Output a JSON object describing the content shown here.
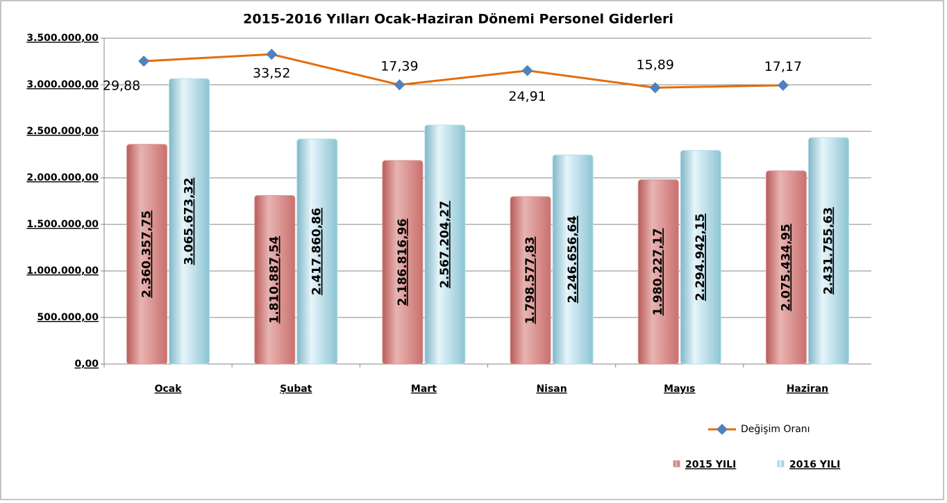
{
  "chart_data": {
    "type": "bar",
    "title": "2015-2016 Yılları Ocak-Haziran Dönemi Personel Giderleri",
    "categories": [
      "Ocak",
      "Şubat",
      "Mart",
      "Nisan",
      "Mayıs",
      "Haziran"
    ],
    "series": [
      {
        "name": "2015 YILI",
        "color": "#d99694",
        "type": "bar",
        "values": [
          2360357.75,
          1810887.54,
          2186816.96,
          1798577.83,
          1980227.17,
          2075434.95
        ],
        "value_labels": [
          "2.360.357,75",
          "1.810.887,54",
          "2.186.816,96",
          "1.798.577,83",
          "1.980.227,17",
          "2.075.434,95"
        ]
      },
      {
        "name": "2016 YILI",
        "color": "#b7dee8",
        "type": "bar",
        "values": [
          3065673.32,
          2417860.86,
          2567204.27,
          2246656.64,
          2294942.15,
          2431755.63
        ],
        "value_labels": [
          "3.065.673,32",
          "2.417.860,86",
          "2.567.204,27",
          "2.246.656,64",
          "2.294.942,15",
          "2.431.755,63"
        ]
      },
      {
        "name": "Değişim Oranı",
        "color": "#e46c0a",
        "marker_color": "#4f81bd",
        "type": "line",
        "axis": "y2",
        "values": [
          29.88,
          33.52,
          17.39,
          24.91,
          15.89,
          17.17
        ],
        "value_labels": [
          "29,88",
          "33,52",
          "17,39",
          "24,91",
          "15,89",
          "17,17"
        ]
      }
    ],
    "ylim": [
      0,
      3500000
    ],
    "yticks": [
      {
        "value": 0,
        "label": "0,00"
      },
      {
        "value": 500000,
        "label": "500.000,00"
      },
      {
        "value": 1000000,
        "label": "1.000.000,00"
      },
      {
        "value": 1500000,
        "label": "1.500.000,00"
      },
      {
        "value": 2000000,
        "label": "2.000.000,00"
      },
      {
        "value": 2500000,
        "label": "2.500.000,00"
      },
      {
        "value": 3000000,
        "label": "3.000.000,00"
      },
      {
        "value": 3500000,
        "label": "3.500.000,00"
      }
    ],
    "y2lim": [
      -130,
      42
    ],
    "grid": true
  }
}
